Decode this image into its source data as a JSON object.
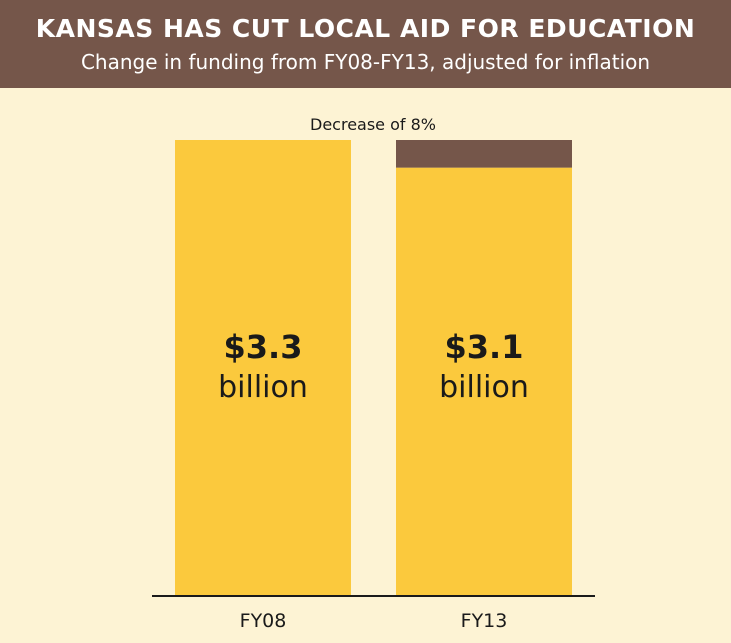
{
  "header": {
    "title": "KANSAS HAS CUT LOCAL AID FOR EDUCATION",
    "subtitle": "Change in funding from FY08-FY13, adjusted for inflation"
  },
  "chart_data": {
    "type": "bar",
    "title": "KANSAS HAS CUT LOCAL AID FOR EDUCATION",
    "subtitle": "Change in funding from FY08-FY13, adjusted for inflation",
    "categories": [
      "FY08",
      "FY13"
    ],
    "values": [
      3.3,
      3.1
    ],
    "value_labels": [
      {
        "amount": "$3.3",
        "unit": "billion"
      },
      {
        "amount": "$3.1",
        "unit": "billion"
      }
    ],
    "decrease_annotation": "Decrease of 8%",
    "decrease_percent": 8,
    "colors": {
      "bar": "#fbc93d",
      "decrease": "#75564a",
      "background": "#fdf3d4",
      "header": "#75564a",
      "text": "#1a1a1a"
    }
  }
}
